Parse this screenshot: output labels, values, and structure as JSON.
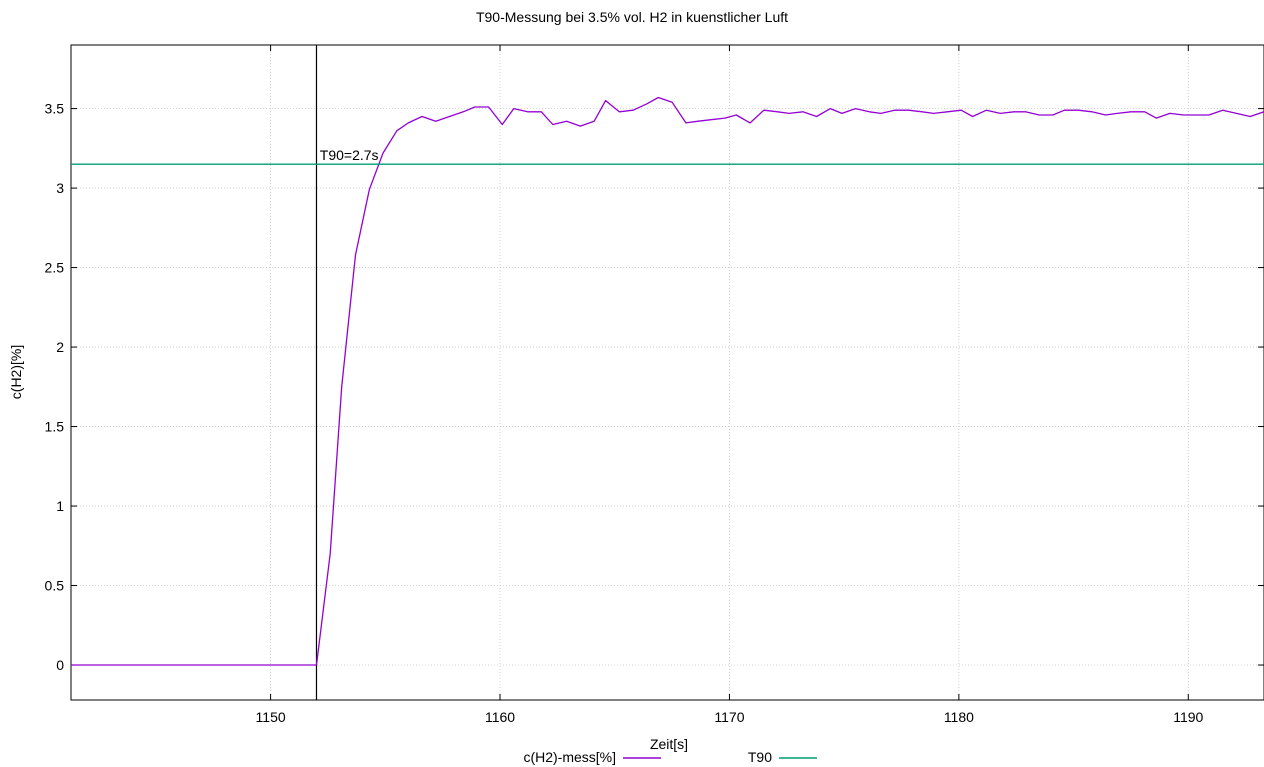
{
  "chart_data": {
    "type": "line",
    "title": "T90-Messung bei 3.5% vol. H2 in kuenstlicher Luft",
    "xlabel": "Zeit[s]",
    "ylabel": "c(H2)[%]",
    "xlim": [
      1141.3,
      1193.3
    ],
    "ylim": [
      -0.22,
      3.9
    ],
    "xticks": [
      1150,
      1160,
      1170,
      1180,
      1190
    ],
    "yticks": [
      0,
      0.5,
      1,
      1.5,
      2,
      2.5,
      3,
      3.5
    ],
    "xtick_labels": [
      "1150",
      "1160",
      "1170",
      "1180",
      "1190"
    ],
    "ytick_labels": [
      "0",
      "0.5",
      "1",
      "1.5",
      "2",
      "2.5",
      "3",
      "3.5"
    ],
    "grid": true,
    "legend_position": "bottom-center",
    "series": [
      {
        "name": "c(H2)-mess[%]",
        "color": "#9400d3",
        "x": [
          1141.3,
          1152.0,
          1152.6,
          1153.1,
          1153.7,
          1154.3,
          1154.9,
          1155.5,
          1156.0,
          1156.6,
          1157.2,
          1157.8,
          1158.4,
          1158.9,
          1159.5,
          1160.1,
          1160.6,
          1161.2,
          1161.8,
          1162.3,
          1162.9,
          1163.5,
          1164.1,
          1164.6,
          1165.2,
          1165.8,
          1166.4,
          1166.9,
          1167.5,
          1168.1,
          1168.6,
          1169.2,
          1169.8,
          1170.3,
          1170.9,
          1171.5,
          1172.1,
          1172.6,
          1173.2,
          1173.8,
          1174.4,
          1174.9,
          1175.5,
          1176.1,
          1176.6,
          1177.2,
          1177.8,
          1178.4,
          1178.9,
          1179.5,
          1180.1,
          1180.6,
          1181.2,
          1181.8,
          1182.4,
          1182.9,
          1183.5,
          1184.1,
          1184.6,
          1185.2,
          1185.8,
          1186.4,
          1186.9,
          1187.5,
          1188.1,
          1188.6,
          1189.2,
          1189.8,
          1190.4,
          1190.9,
          1191.5,
          1192.1,
          1192.7,
          1193.3
        ],
        "y": [
          0,
          0,
          0.7,
          1.75,
          2.58,
          2.99,
          3.22,
          3.36,
          3.41,
          3.45,
          3.42,
          3.45,
          3.48,
          3.51,
          3.51,
          3.4,
          3.5,
          3.48,
          3.48,
          3.4,
          3.42,
          3.39,
          3.42,
          3.55,
          3.48,
          3.49,
          3.53,
          3.57,
          3.54,
          3.41,
          3.42,
          3.43,
          3.44,
          3.46,
          3.41,
          3.49,
          3.48,
          3.47,
          3.48,
          3.45,
          3.5,
          3.47,
          3.5,
          3.48,
          3.47,
          3.49,
          3.49,
          3.48,
          3.47,
          3.48,
          3.49,
          3.45,
          3.49,
          3.47,
          3.48,
          3.48,
          3.46,
          3.46,
          3.49,
          3.49,
          3.48,
          3.46,
          3.47,
          3.48,
          3.48,
          3.44,
          3.47,
          3.46,
          3.46,
          3.46,
          3.49,
          3.47,
          3.45,
          3.48
        ]
      },
      {
        "name": "T90",
        "color": "#009e73",
        "x": [
          1141.3,
          1193.3
        ],
        "y": [
          3.15,
          3.15
        ]
      }
    ],
    "vertical_marker": {
      "x": 1152.0,
      "color": "#000000"
    },
    "annotations": [
      {
        "text": "T90=2.7s",
        "x": 1152.1,
        "y": 3.15
      }
    ]
  }
}
